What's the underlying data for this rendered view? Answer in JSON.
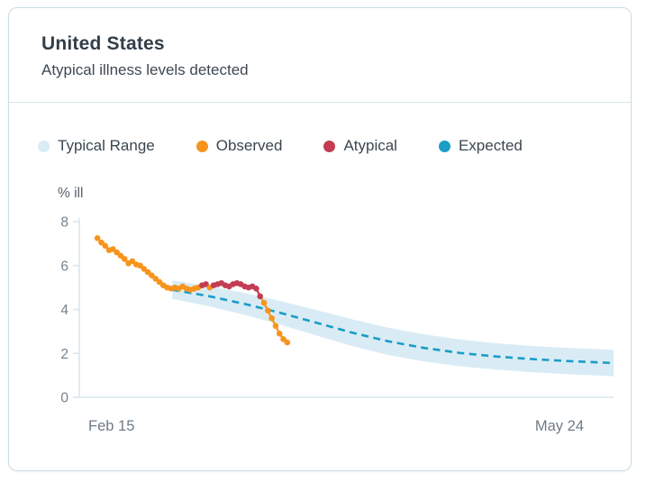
{
  "header": {
    "title": "United States",
    "subtitle": "Atypical illness levels detected"
  },
  "legend": [
    {
      "label": "Typical Range",
      "color": "#d9ecf5"
    },
    {
      "label": "Observed",
      "color": "#f7941d"
    },
    {
      "label": "Atypical",
      "color": "#c33c54"
    },
    {
      "label": "Expected",
      "color": "#1a9dc6"
    }
  ],
  "chart_data": {
    "type": "line",
    "title": "United States — Atypical illness levels detected",
    "y_label": "% ill",
    "y_ticks": [
      8,
      6,
      4,
      2,
      0
    ],
    "ylim": [
      0,
      8
    ],
    "x_tick_labels": [
      "Feb 15",
      "May 24"
    ],
    "grid": "off",
    "legend_position": "top",
    "colors": {
      "band": "#d9ecf5",
      "observed": "#f7941d",
      "atypical": "#c33c54",
      "expected": "#1a9dc6",
      "axis": "#d9e8ee",
      "tick_text": "#76838f"
    },
    "observed": {
      "note": "daily observed %-ill readings starting Feb 15; a=1 marks atypical (red) points",
      "start_frac": 0.034,
      "step_frac": 0.00725,
      "points": [
        {
          "v": 7.25,
          "a": 0
        },
        {
          "v": 7.05,
          "a": 0
        },
        {
          "v": 6.9,
          "a": 0
        },
        {
          "v": 6.7,
          "a": 0
        },
        {
          "v": 6.75,
          "a": 0
        },
        {
          "v": 6.6,
          "a": 0
        },
        {
          "v": 6.45,
          "a": 0
        },
        {
          "v": 6.3,
          "a": 0
        },
        {
          "v": 6.1,
          "a": 0
        },
        {
          "v": 6.2,
          "a": 0
        },
        {
          "v": 6.05,
          "a": 0
        },
        {
          "v": 6.0,
          "a": 0
        },
        {
          "v": 5.85,
          "a": 0
        },
        {
          "v": 5.7,
          "a": 0
        },
        {
          "v": 5.55,
          "a": 0
        },
        {
          "v": 5.4,
          "a": 0
        },
        {
          "v": 5.25,
          "a": 0
        },
        {
          "v": 5.1,
          "a": 0
        },
        {
          "v": 5.0,
          "a": 0
        },
        {
          "v": 4.95,
          "a": 0
        },
        {
          "v": 5.0,
          "a": 0
        },
        {
          "v": 4.95,
          "a": 0
        },
        {
          "v": 5.05,
          "a": 0
        },
        {
          "v": 4.95,
          "a": 0
        },
        {
          "v": 4.9,
          "a": 0
        },
        {
          "v": 4.95,
          "a": 0
        },
        {
          "v": 5.0,
          "a": 0
        },
        {
          "v": 5.1,
          "a": 1
        },
        {
          "v": 5.15,
          "a": 1
        },
        {
          "v": 5.0,
          "a": 0
        },
        {
          "v": 5.1,
          "a": 1
        },
        {
          "v": 5.15,
          "a": 1
        },
        {
          "v": 5.2,
          "a": 1
        },
        {
          "v": 5.1,
          "a": 1
        },
        {
          "v": 5.05,
          "a": 1
        },
        {
          "v": 5.15,
          "a": 1
        },
        {
          "v": 5.2,
          "a": 1
        },
        {
          "v": 5.15,
          "a": 1
        },
        {
          "v": 5.05,
          "a": 1
        },
        {
          "v": 5.0,
          "a": 1
        },
        {
          "v": 5.05,
          "a": 1
        },
        {
          "v": 4.95,
          "a": 1
        },
        {
          "v": 4.6,
          "a": 1
        },
        {
          "v": 4.3,
          "a": 0
        },
        {
          "v": 3.95,
          "a": 0
        },
        {
          "v": 3.6,
          "a": 0
        },
        {
          "v": 3.25,
          "a": 0
        },
        {
          "v": 2.9,
          "a": 0
        },
        {
          "v": 2.65,
          "a": 0
        },
        {
          "v": 2.5,
          "a": 0
        }
      ]
    },
    "expected": {
      "note": "forecast %-ill with typical-range half-width hw; t = fraction of x-axis (Feb 15 -> May 24)",
      "samples": [
        {
          "t": 0.174,
          "v": 4.9,
          "hw": 0.42
        },
        {
          "t": 0.24,
          "v": 4.62,
          "hw": 0.46
        },
        {
          "t": 0.31,
          "v": 4.25,
          "hw": 0.5
        },
        {
          "t": 0.376,
          "v": 3.85,
          "hw": 0.54
        },
        {
          "t": 0.443,
          "v": 3.4,
          "hw": 0.58
        },
        {
          "t": 0.51,
          "v": 2.95,
          "hw": 0.61
        },
        {
          "t": 0.578,
          "v": 2.55,
          "hw": 0.62
        },
        {
          "t": 0.645,
          "v": 2.25,
          "hw": 0.62
        },
        {
          "t": 0.713,
          "v": 2.02,
          "hw": 0.61
        },
        {
          "t": 0.78,
          "v": 1.86,
          "hw": 0.6
        },
        {
          "t": 0.848,
          "v": 1.74,
          "hw": 0.6
        },
        {
          "t": 0.916,
          "v": 1.65,
          "hw": 0.6
        },
        {
          "t": 0.983,
          "v": 1.58,
          "hw": 0.6
        },
        {
          "t": 1.0,
          "v": 1.56,
          "hw": 0.6
        }
      ]
    }
  }
}
